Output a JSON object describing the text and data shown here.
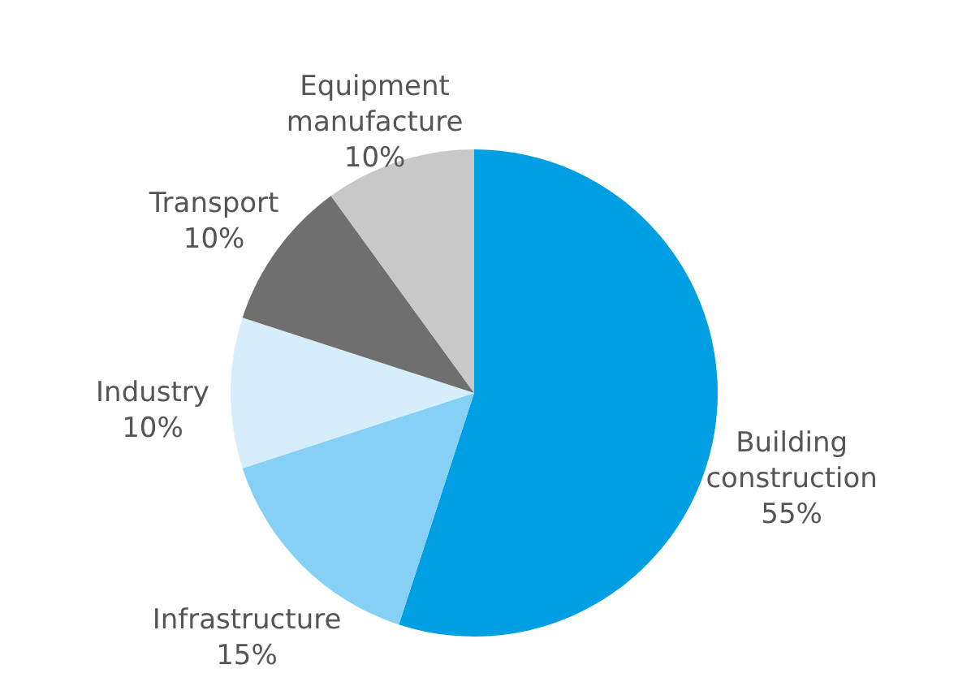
{
  "chart_data": {
    "type": "pie",
    "categories": [
      "Building construction",
      "Infrastructure",
      "Industry",
      "Transport",
      "Equipment manufacture"
    ],
    "values": [
      55,
      15,
      10,
      10,
      10
    ],
    "colors": [
      "#009fe3",
      "#86cff5",
      "#d6edfc",
      "#6f6f6f",
      "#c8c8c8"
    ],
    "value_labels": [
      "55%",
      "15%",
      "10%",
      "10%",
      "10%"
    ]
  }
}
